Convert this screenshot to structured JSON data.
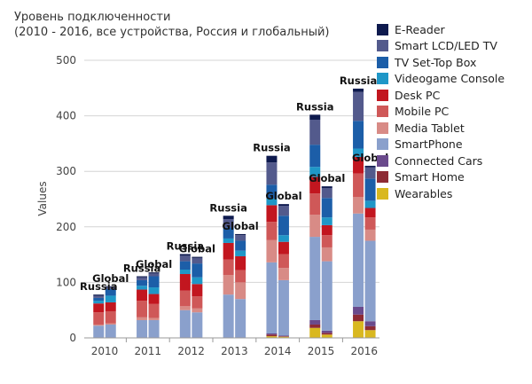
{
  "chart_data": {
    "type": "bar",
    "stacked": true,
    "title": "Уровень подключенности",
    "subtitle": "(2010 - 2016, все устройства, Россия и глобальный)",
    "xlabel": "",
    "ylabel": "Values",
    "ylim": [
      0,
      500
    ],
    "yticks": [
      0,
      100,
      200,
      300,
      400,
      500
    ],
    "grid": true,
    "legend_position": "right",
    "categories": [
      "2010",
      "2011",
      "2012",
      "2013",
      "2014",
      "2015",
      "2016"
    ],
    "groups": [
      "Russia",
      "Global"
    ],
    "series": [
      {
        "name": "Wearables",
        "color": "#d9b820",
        "values": {
          "Russia": [
            0,
            0,
            0,
            0,
            3,
            18,
            30
          ],
          "Global": [
            0,
            0,
            0,
            0,
            2,
            6,
            14
          ]
        }
      },
      {
        "name": "Smart Home",
        "color": "#8e2b34",
        "values": {
          "Russia": [
            0,
            0,
            0,
            0,
            3,
            6,
            12
          ],
          "Global": [
            0,
            0,
            0,
            0,
            1,
            3,
            7
          ]
        }
      },
      {
        "name": "Connected Cars",
        "color": "#6a4a8c",
        "values": {
          "Russia": [
            0,
            0,
            0,
            0,
            2,
            8,
            14
          ],
          "Global": [
            0,
            0,
            0,
            0,
            1,
            4,
            9
          ]
        }
      },
      {
        "name": "SmartPhone",
        "color": "#8aa0cc",
        "values": {
          "Russia": [
            22,
            32,
            50,
            78,
            128,
            150,
            168
          ],
          "Global": [
            24,
            32,
            46,
            70,
            100,
            125,
            145
          ]
        }
      },
      {
        "name": "Media Tablet",
        "color": "#d88b86",
        "values": {
          "Russia": [
            2,
            5,
            7,
            35,
            40,
            40,
            30
          ],
          "Global": [
            2,
            4,
            7,
            30,
            22,
            25,
            20
          ]
        }
      },
      {
        "name": "Mobile PC",
        "color": "#cf5858",
        "values": {
          "Russia": [
            22,
            30,
            28,
            28,
            33,
            38,
            42
          ],
          "Global": [
            22,
            25,
            22,
            22,
            25,
            22,
            22
          ]
        }
      },
      {
        "name": "Desk PC",
        "color": "#c2161f",
        "values": {
          "Russia": [
            16,
            20,
            30,
            30,
            30,
            30,
            30
          ],
          "Global": [
            16,
            18,
            22,
            25,
            22,
            18,
            17
          ]
        }
      },
      {
        "name": "Videogame Console",
        "color": "#1f97c7",
        "values": {
          "Russia": [
            5,
            7,
            8,
            8,
            12,
            18,
            15
          ],
          "Global": [
            12,
            12,
            12,
            10,
            12,
            14,
            13
          ]
        }
      },
      {
        "name": "TV Set-Top Box",
        "color": "#1c5ea8",
        "values": {
          "Russia": [
            5,
            10,
            15,
            20,
            25,
            40,
            50
          ],
          "Global": [
            12,
            20,
            25,
            18,
            35,
            35,
            40
          ]
        }
      },
      {
        "name": "Smart LCD/LED TV",
        "color": "#535a8c",
        "values": {
          "Russia": [
            4,
            5,
            10,
            15,
            40,
            45,
            52
          ],
          "Global": [
            4,
            5,
            10,
            10,
            18,
            18,
            20
          ]
        }
      },
      {
        "name": "E-Reader",
        "color": "#0e1a4e",
        "values": {
          "Russia": [
            2,
            2,
            3,
            6,
            12,
            9,
            6
          ],
          "Global": [
            1,
            2,
            2,
            2,
            3,
            3,
            3
          ]
        }
      }
    ],
    "legend": [
      "E-Reader",
      "Smart LCD/LED TV",
      "TV Set-Top Box",
      "Videogame Console",
      "Desk PC",
      "Mobile PC",
      "Media Tablet",
      "SmartPhone",
      "Connected Cars",
      "Smart Home",
      "Wearables"
    ]
  }
}
